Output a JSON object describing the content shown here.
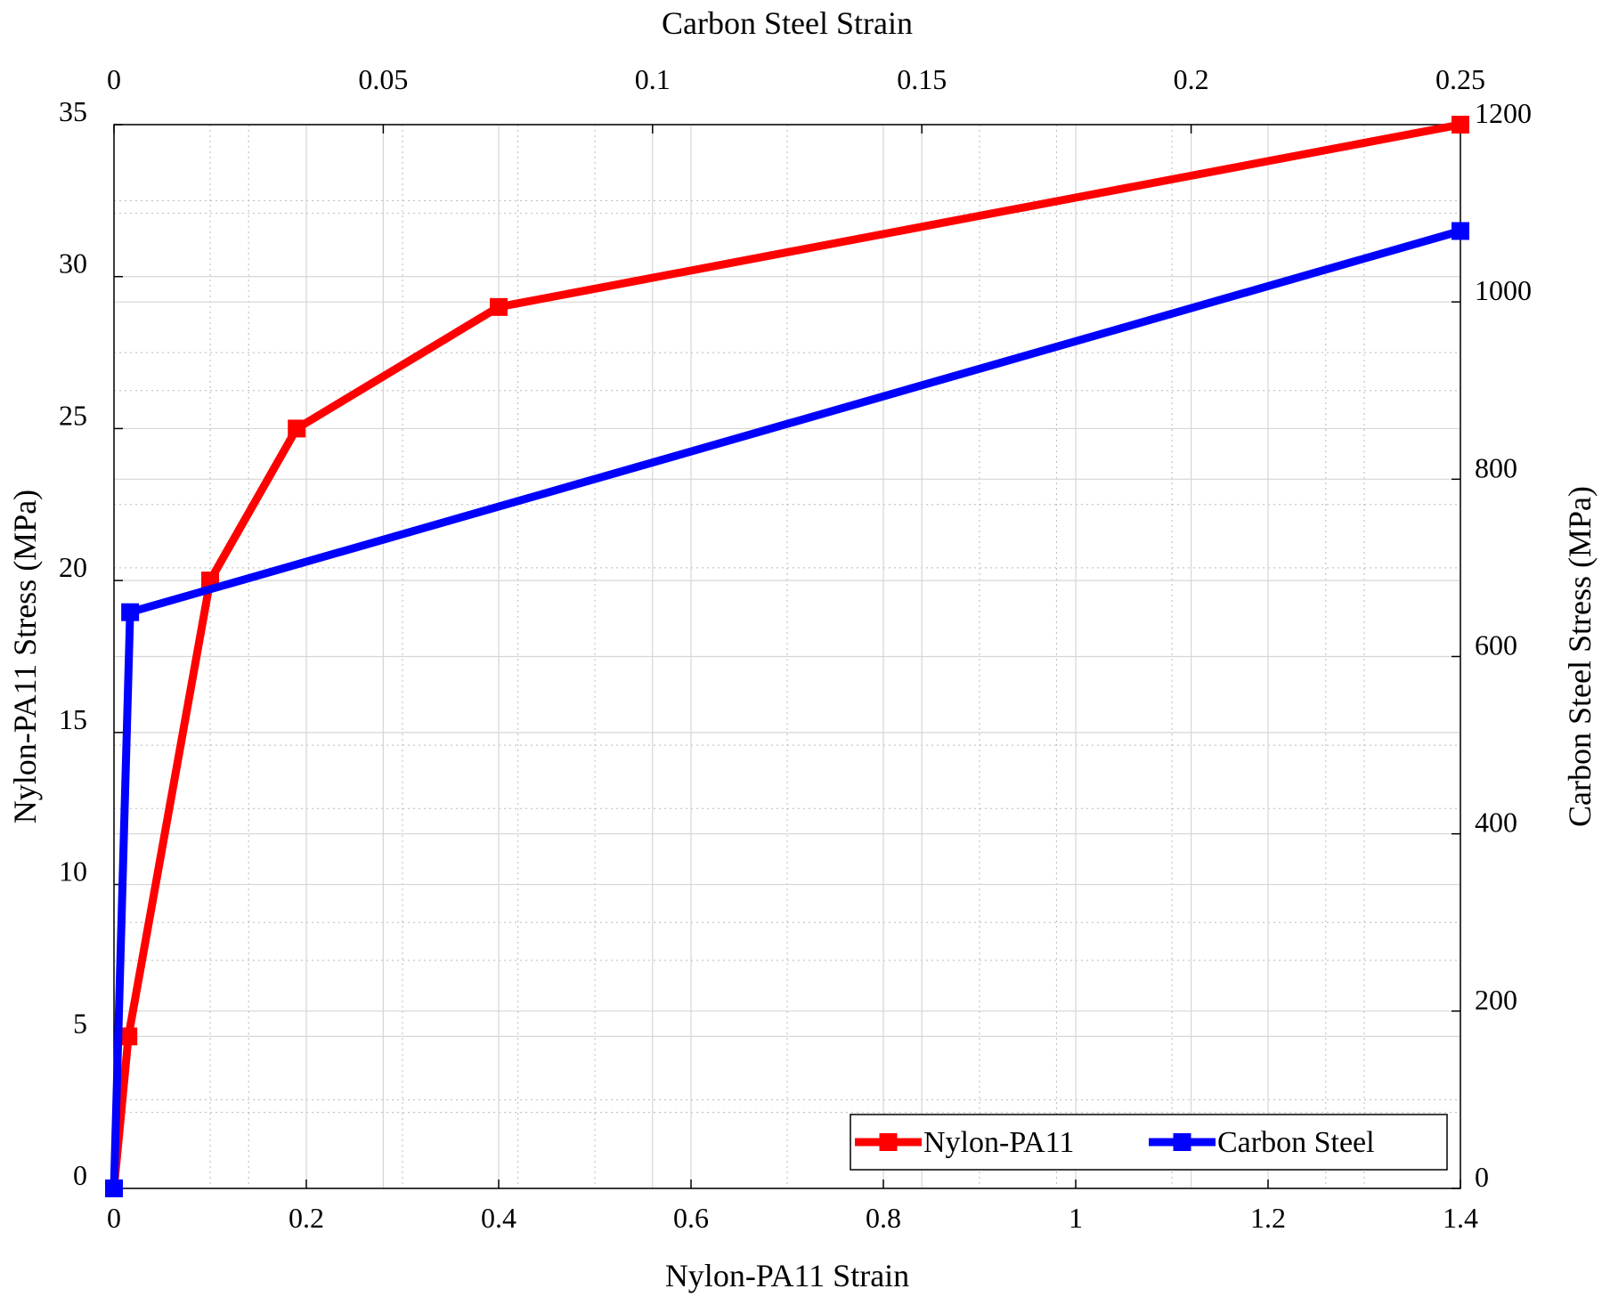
{
  "chart_data": {
    "type": "line",
    "dual_axis": true,
    "xlabel": "Nylon-PA11 Strain",
    "ylabel": "Nylon-PA11 Stress (MPa)",
    "x2label": "Carbon Steel Strain",
    "y2label": "Carbon Steel Stress (MPa)",
    "xlim": [
      0,
      1.4
    ],
    "ylim": [
      0,
      35
    ],
    "x2lim": [
      0,
      0.25
    ],
    "y2lim": [
      0,
      1200
    ],
    "xticks": [
      "0",
      "0.2",
      "0.4",
      "0.6",
      "0.8",
      "1",
      "1.2",
      "1.4"
    ],
    "yticks": [
      "0",
      "5",
      "10",
      "15",
      "20",
      "25",
      "30",
      "35"
    ],
    "x2ticks": [
      "0",
      "0.05",
      "0.1",
      "0.15",
      "0.2",
      "0.25"
    ],
    "y2ticks": [
      "0",
      "200",
      "400",
      "600",
      "800",
      "1000",
      "1200"
    ],
    "grid": true,
    "minor_grid": true,
    "legend_position": "bottom-right",
    "series": [
      {
        "name": "Nylon-PA11",
        "axes": "primary",
        "color": "#ff0000",
        "marker": "square",
        "x": [
          0,
          0.015,
          0.1,
          0.19,
          0.4,
          1.4
        ],
        "y": [
          0,
          5,
          20,
          25,
          29,
          35
        ]
      },
      {
        "name": "Carbon Steel",
        "axes": "secondary",
        "color": "#0000ff",
        "marker": "square",
        "x": [
          0,
          0.003,
          0.25
        ],
        "y": [
          0,
          650,
          1080
        ]
      }
    ]
  }
}
